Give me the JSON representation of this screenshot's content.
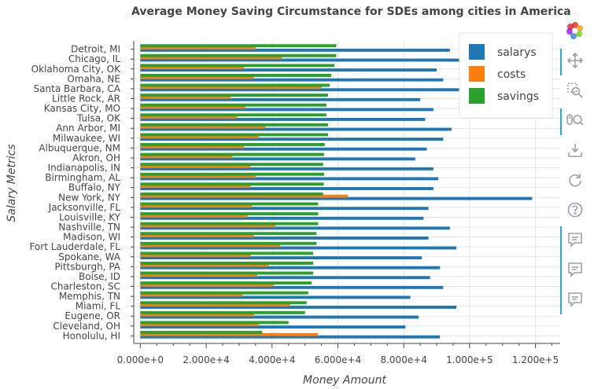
{
  "chart_data": {
    "type": "bar",
    "orientation": "horizontal",
    "title": "Average Money Saving Circumstance for SDEs among cities in America",
    "xlabel": "Money Amount",
    "ylabel": "Salary Metrics",
    "xlim": [
      -2000,
      127500
    ],
    "xticks": [
      0,
      20000,
      40000,
      60000,
      80000,
      100000,
      120000
    ],
    "xtick_labels": [
      "0.000e+0",
      "2.000e+4",
      "4.000e+4",
      "6.000e+4",
      "8.000e+4",
      "1.000e+5",
      "1.200e+5"
    ],
    "grid": true,
    "legend_position": "top-right",
    "categories": [
      "Detroit, MI",
      "Chicago, IL",
      "Oklahoma City, OK",
      "Omaha, NE",
      "Santa Barbara, CA",
      "Little Rock, AR",
      "Kansas City, MO",
      "Tulsa, OK",
      "Ann Arbor, MI",
      "Milwaukee, WI",
      "Albuquerque, NM",
      "Akron, OH",
      "Indianapolis, IN",
      "Birmingham, AL",
      "Buffalo, NY",
      "New York, NY",
      "Jacksonville, FL",
      "Louisville, KY",
      "Nashville, TN",
      "Madison, WI",
      "Fort Lauderdale, FL",
      "Spokane, WA",
      "Pittsburgh, PA",
      "Boise, ID",
      "Charleston, SC",
      "Memphis, TN",
      "Miami, FL",
      "Eugene, OR",
      "Cleveland, OH",
      "Honolulu, HI"
    ],
    "series": [
      {
        "name": "salarys",
        "color": "#1f77b4",
        "values": [
          94000,
          98000,
          90000,
          92000,
          97000,
          85000,
          89000,
          86500,
          94500,
          92000,
          87000,
          83500,
          89000,
          90500,
          89000,
          119000,
          87500,
          86000,
          94000,
          87500,
          96000,
          85500,
          91000,
          88000,
          92000,
          82000,
          96000,
          84500,
          80500,
          91000
        ]
      },
      {
        "name": "costs",
        "color": "#ff7f0e",
        "values": [
          35000,
          43000,
          31500,
          34500,
          55000,
          27500,
          32000,
          29500,
          38000,
          36000,
          31500,
          28000,
          33500,
          35000,
          33500,
          63000,
          34000,
          32500,
          41000,
          34500,
          42500,
          33500,
          39000,
          35500,
          40500,
          31000,
          45500,
          34500,
          36000,
          54000
        ]
      },
      {
        "name": "savings",
        "color": "#2ca02c",
        "values": [
          59500,
          59500,
          59000,
          58000,
          57500,
          57000,
          56500,
          56500,
          57000,
          57000,
          56000,
          55800,
          55500,
          55800,
          55700,
          55500,
          54000,
          54000,
          54000,
          53500,
          53500,
          52500,
          52500,
          52500,
          52000,
          51000,
          50500,
          50000,
          45000,
          37000
        ]
      }
    ]
  },
  "toolbar": {
    "tools": [
      "bokeh-logo-icon",
      "pan-icon",
      "box-zoom-icon",
      "wheel-zoom-icon",
      "save-icon",
      "reset-icon",
      "help-icon",
      "hover-icon",
      "hover-icon",
      "hover-icon"
    ]
  }
}
